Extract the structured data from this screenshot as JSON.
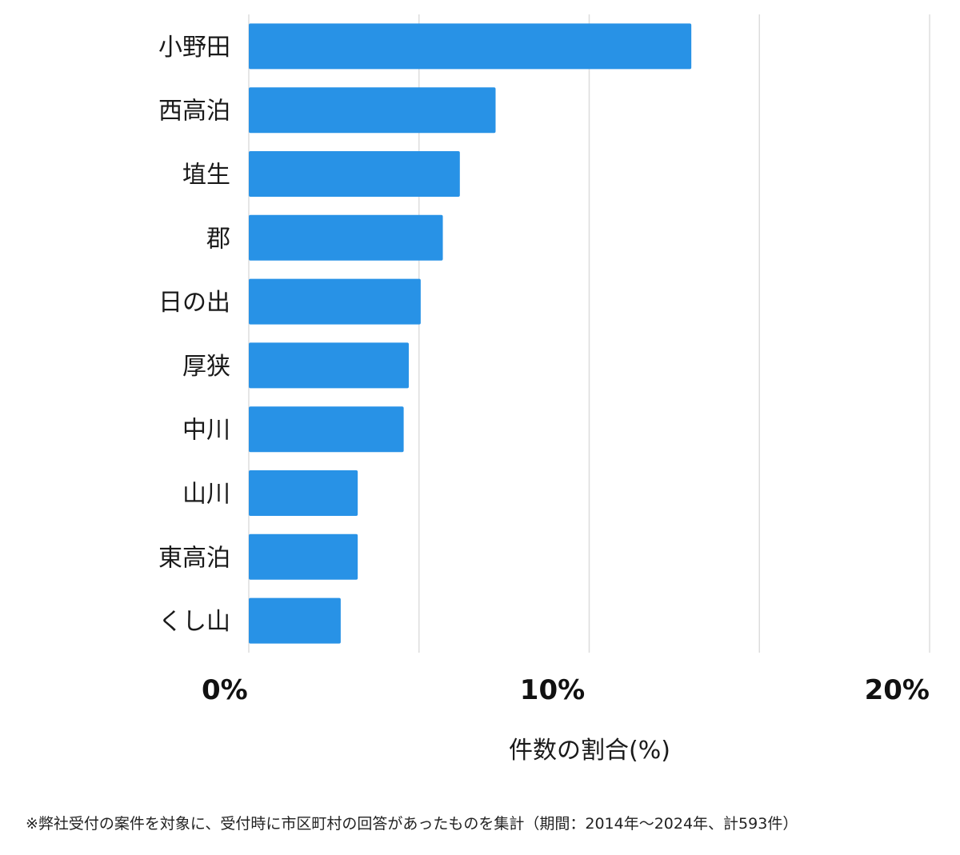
{
  "chart_data": {
    "type": "bar",
    "orientation": "horizontal",
    "categories": [
      "小野田",
      "西高泊",
      "埴生",
      "郡",
      "日の出",
      "厚狭",
      "中川",
      "山川",
      "東高泊",
      "くし山"
    ],
    "values": [
      13.0,
      7.25,
      6.2,
      5.7,
      5.05,
      4.7,
      4.55,
      3.2,
      3.2,
      2.7
    ],
    "xlabel": "件数の割合(%)",
    "xlim": [
      0,
      20
    ],
    "xticks": [
      0,
      10,
      20
    ],
    "xtick_labels": [
      "0%",
      "10%",
      "20%"
    ],
    "grid": true,
    "bar_color": "#2892e6",
    "grid_color": "#dddddd"
  },
  "footnote": "※弊社受付の案件を対象に、受付時に市区町村の回答があったものを集計（期間：2014年～2024年、計593件）"
}
